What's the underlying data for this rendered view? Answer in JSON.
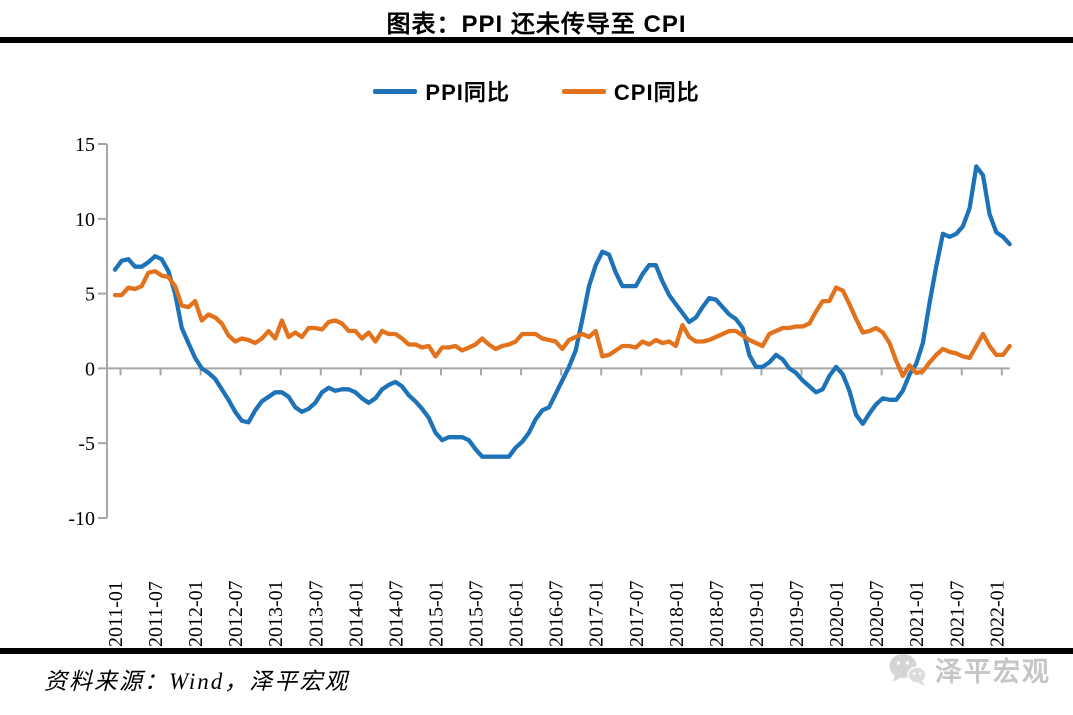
{
  "title": "图表：PPI 还未传导至 CPI",
  "legend": {
    "items": [
      {
        "label": "PPI同比",
        "color": "#1E73B8"
      },
      {
        "label": "CPI同比",
        "color": "#E2731C"
      }
    ]
  },
  "footer": {
    "source": "资料来源：Wind，泽平宏观",
    "logo_text": "泽平宏观"
  },
  "chart_data": {
    "type": "line",
    "title": "图表：PPI 还未传导至 CPI",
    "xlabel": "",
    "ylabel": "",
    "ylim": [
      -10,
      15
    ],
    "y_ticks": [
      15,
      10,
      5,
      0,
      -5,
      -10
    ],
    "grid": "zero-line-only",
    "legend_position": "top-center",
    "axis_color": "#A6A6A6",
    "frequency": "monthly",
    "x_start": "2011-01",
    "x_end": "2022-03",
    "months_per_label": 6,
    "x_tick_labels": [
      "2011-01",
      "2011-07",
      "2012-01",
      "2012-07",
      "2013-01",
      "2013-07",
      "2014-01",
      "2014-07",
      "2015-01",
      "2015-07",
      "2016-01",
      "2016-07",
      "2017-01",
      "2017-07",
      "2018-01",
      "2018-07",
      "2019-01",
      "2019-07",
      "2020-01",
      "2020-07",
      "2021-01",
      "2021-07",
      "2022-01"
    ],
    "series": [
      {
        "name": "PPI同比",
        "color": "#1E73B8",
        "values": [
          6.6,
          7.2,
          7.3,
          6.8,
          6.8,
          7.1,
          7.5,
          7.3,
          6.5,
          5.0,
          2.7,
          1.7,
          0.7,
          0.0,
          -0.3,
          -0.7,
          -1.4,
          -2.1,
          -2.9,
          -3.5,
          -3.6,
          -2.8,
          -2.2,
          -1.9,
          -1.6,
          -1.6,
          -1.9,
          -2.6,
          -2.9,
          -2.7,
          -2.3,
          -1.6,
          -1.3,
          -1.5,
          -1.4,
          -1.4,
          -1.6,
          -2.0,
          -2.3,
          -2.0,
          -1.4,
          -1.1,
          -0.9,
          -1.2,
          -1.8,
          -2.2,
          -2.7,
          -3.3,
          -4.3,
          -4.8,
          -4.6,
          -4.6,
          -4.6,
          -4.8,
          -5.4,
          -5.9,
          -5.9,
          -5.9,
          -5.9,
          -5.9,
          -5.3,
          -4.9,
          -4.3,
          -3.4,
          -2.8,
          -2.6,
          -1.7,
          -0.8,
          0.1,
          1.2,
          3.3,
          5.5,
          6.9,
          7.8,
          7.6,
          6.4,
          5.5,
          5.5,
          5.5,
          6.3,
          6.9,
          6.9,
          5.8,
          4.9,
          4.3,
          3.7,
          3.1,
          3.4,
          4.1,
          4.7,
          4.6,
          4.1,
          3.6,
          3.3,
          2.7,
          0.9,
          0.1,
          0.1,
          0.4,
          0.9,
          0.6,
          0.0,
          -0.3,
          -0.8,
          -1.2,
          -1.6,
          -1.4,
          -0.5,
          0.1,
          -0.4,
          -1.5,
          -3.1,
          -3.7,
          -3.0,
          -2.4,
          -2.0,
          -2.1,
          -2.1,
          -1.5,
          -0.4,
          0.3,
          1.7,
          4.4,
          6.8,
          9.0,
          8.8,
          9.0,
          9.5,
          10.7,
          13.5,
          12.9,
          10.3,
          9.1,
          8.8,
          8.3
        ]
      },
      {
        "name": "CPI同比",
        "color": "#E2731C",
        "values": [
          4.9,
          4.9,
          5.4,
          5.3,
          5.5,
          6.4,
          6.5,
          6.2,
          6.1,
          5.5,
          4.2,
          4.1,
          4.5,
          3.2,
          3.6,
          3.4,
          3.0,
          2.2,
          1.8,
          2.0,
          1.9,
          1.7,
          2.0,
          2.5,
          2.0,
          3.2,
          2.1,
          2.4,
          2.1,
          2.7,
          2.7,
          2.6,
          3.1,
          3.2,
          3.0,
          2.5,
          2.5,
          2.0,
          2.4,
          1.8,
          2.5,
          2.3,
          2.3,
          2.0,
          1.6,
          1.6,
          1.4,
          1.5,
          0.8,
          1.4,
          1.4,
          1.5,
          1.2,
          1.4,
          1.6,
          2.0,
          1.6,
          1.3,
          1.5,
          1.6,
          1.8,
          2.3,
          2.3,
          2.3,
          2.0,
          1.9,
          1.8,
          1.3,
          1.9,
          2.1,
          2.3,
          2.1,
          2.5,
          0.8,
          0.9,
          1.2,
          1.5,
          1.5,
          1.4,
          1.8,
          1.6,
          1.9,
          1.7,
          1.8,
          1.5,
          2.9,
          2.1,
          1.8,
          1.8,
          1.9,
          2.1,
          2.3,
          2.5,
          2.5,
          2.2,
          1.9,
          1.7,
          1.5,
          2.3,
          2.5,
          2.7,
          2.7,
          2.8,
          2.8,
          3.0,
          3.8,
          4.5,
          4.5,
          5.4,
          5.2,
          4.3,
          3.3,
          2.4,
          2.5,
          2.7,
          2.4,
          1.7,
          0.5,
          -0.5,
          0.2,
          -0.3,
          -0.2,
          0.4,
          0.9,
          1.3,
          1.1,
          1.0,
          0.8,
          0.7,
          1.5,
          2.3,
          1.5,
          0.9,
          0.9,
          1.5
        ]
      }
    ]
  }
}
